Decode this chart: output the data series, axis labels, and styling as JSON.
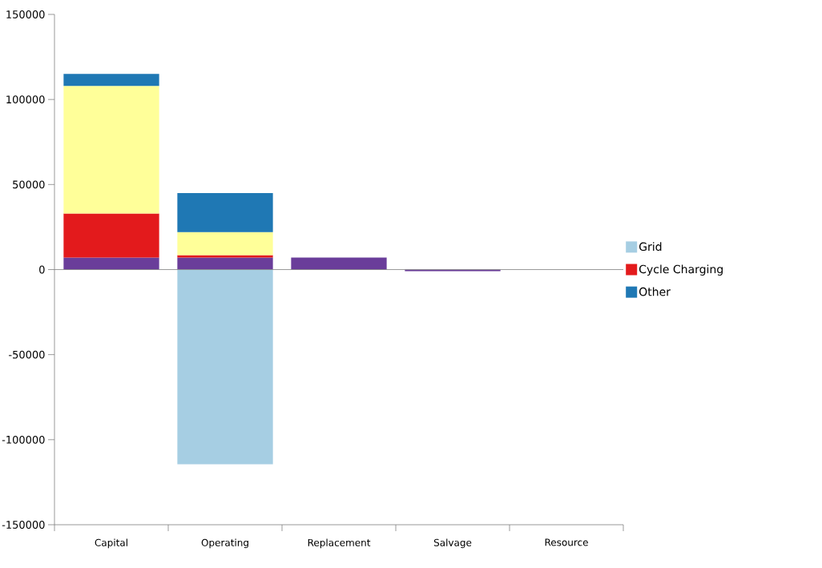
{
  "chart_data": {
    "type": "bar",
    "stacked": true,
    "categories": [
      "Capital",
      "Operating",
      "Replacement",
      "Salvage",
      "Resource"
    ],
    "series": [
      {
        "color": "#6a3d9a",
        "values": [
          7000,
          7000,
          7000,
          -1000,
          0
        ]
      },
      {
        "name": "Grid",
        "color": "#a6cee3",
        "values": [
          0,
          -114500,
          0,
          0,
          0
        ]
      },
      {
        "name": "Cycle Charging",
        "color": "#e31a1c",
        "values": [
          26000,
          1500,
          0,
          0,
          0
        ]
      },
      {
        "color": "#ffff99",
        "values": [
          75000,
          13500,
          0,
          0,
          0
        ]
      },
      {
        "name": "Other",
        "color": "#1f78b4",
        "values": [
          7000,
          23000,
          0,
          0,
          0
        ]
      }
    ],
    "ylim": [
      -150000,
      150000
    ],
    "yticks": [
      -150000,
      -100000,
      -50000,
      0,
      50000,
      100000,
      150000
    ],
    "ref_lines": [
      {
        "axis": "y",
        "value": 0
      }
    ],
    "grid": false,
    "legend": "right"
  }
}
